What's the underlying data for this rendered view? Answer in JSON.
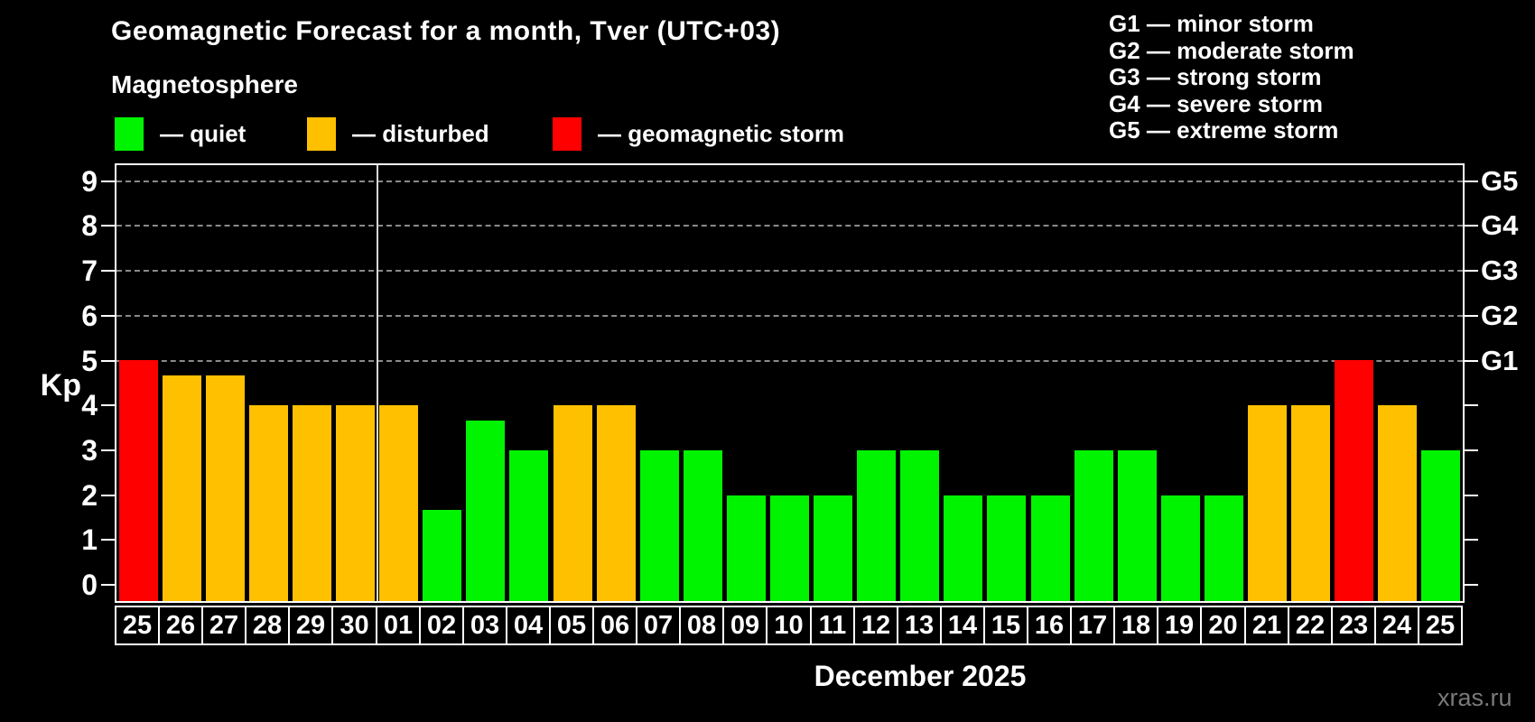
{
  "title": "Geomagnetic Forecast for a month, Tver (UTC+03)",
  "subtitle": "Magnetosphere",
  "legend": {
    "quiet": "— quiet",
    "disturbed": "— disturbed",
    "storm": "— geomagnetic storm"
  },
  "g_legend": [
    {
      "text": "G1 — minor storm"
    },
    {
      "text": "G2 — moderate storm"
    },
    {
      "text": "G3 — strong storm"
    },
    {
      "text": "G4 — severe storm"
    },
    {
      "text": "G5 — extreme storm"
    }
  ],
  "axis": {
    "kp_label": "Kp"
  },
  "xlabel": "December 2025",
  "watermark": "xras.ru",
  "colors": {
    "quiet": "#00f400",
    "disturbed": "#ffc000",
    "storm": "#ff0000",
    "background": "#000000",
    "grid": "#8a8a8a",
    "axis": "#ffffff",
    "month_separator": "#d8d8d8",
    "watermark": "#7a7a7a"
  },
  "chart_data": {
    "type": "bar",
    "title": "Geomagnetic Forecast for a month, Tver (UTC+03)",
    "subtitle": "Magnetosphere",
    "categories": [
      "25",
      "26",
      "27",
      "28",
      "29",
      "30",
      "01",
      "02",
      "03",
      "04",
      "05",
      "06",
      "07",
      "08",
      "09",
      "10",
      "11",
      "12",
      "13",
      "14",
      "15",
      "16",
      "17",
      "18",
      "19",
      "20",
      "21",
      "22",
      "23",
      "24",
      "25"
    ],
    "values": [
      5,
      4.67,
      4.67,
      4,
      4,
      4,
      4,
      1.67,
      3.67,
      3,
      4,
      4,
      3,
      3,
      2,
      2,
      2,
      3,
      3,
      2,
      2,
      2,
      3,
      3,
      2,
      2,
      4,
      4,
      5,
      4,
      3
    ],
    "status": [
      "storm",
      "disturbed",
      "disturbed",
      "disturbed",
      "disturbed",
      "disturbed",
      "disturbed",
      "quiet",
      "quiet",
      "quiet",
      "disturbed",
      "disturbed",
      "quiet",
      "quiet",
      "quiet",
      "quiet",
      "quiet",
      "quiet",
      "quiet",
      "quiet",
      "quiet",
      "quiet",
      "quiet",
      "quiet",
      "quiet",
      "quiet",
      "disturbed",
      "disturbed",
      "storm",
      "disturbed",
      "quiet"
    ],
    "xlabel": "December 2025",
    "ylabel": "Kp",
    "ylim": [
      0,
      9
    ],
    "y_ticks": [
      0,
      1,
      2,
      3,
      4,
      5,
      6,
      7,
      8,
      9
    ],
    "gridlines_at": [
      5,
      6,
      7,
      8,
      9
    ],
    "right_axis_labels": [
      {
        "label": "G1",
        "kp": 5
      },
      {
        "label": "G2",
        "kp": 6
      },
      {
        "label": "G3",
        "kp": 7
      },
      {
        "label": "G4",
        "kp": 8
      },
      {
        "label": "G5",
        "kp": 9
      }
    ],
    "month_separator_after_index": 5,
    "legend_position": "top-left",
    "grid": "dashed-on-storm-levels-only"
  }
}
